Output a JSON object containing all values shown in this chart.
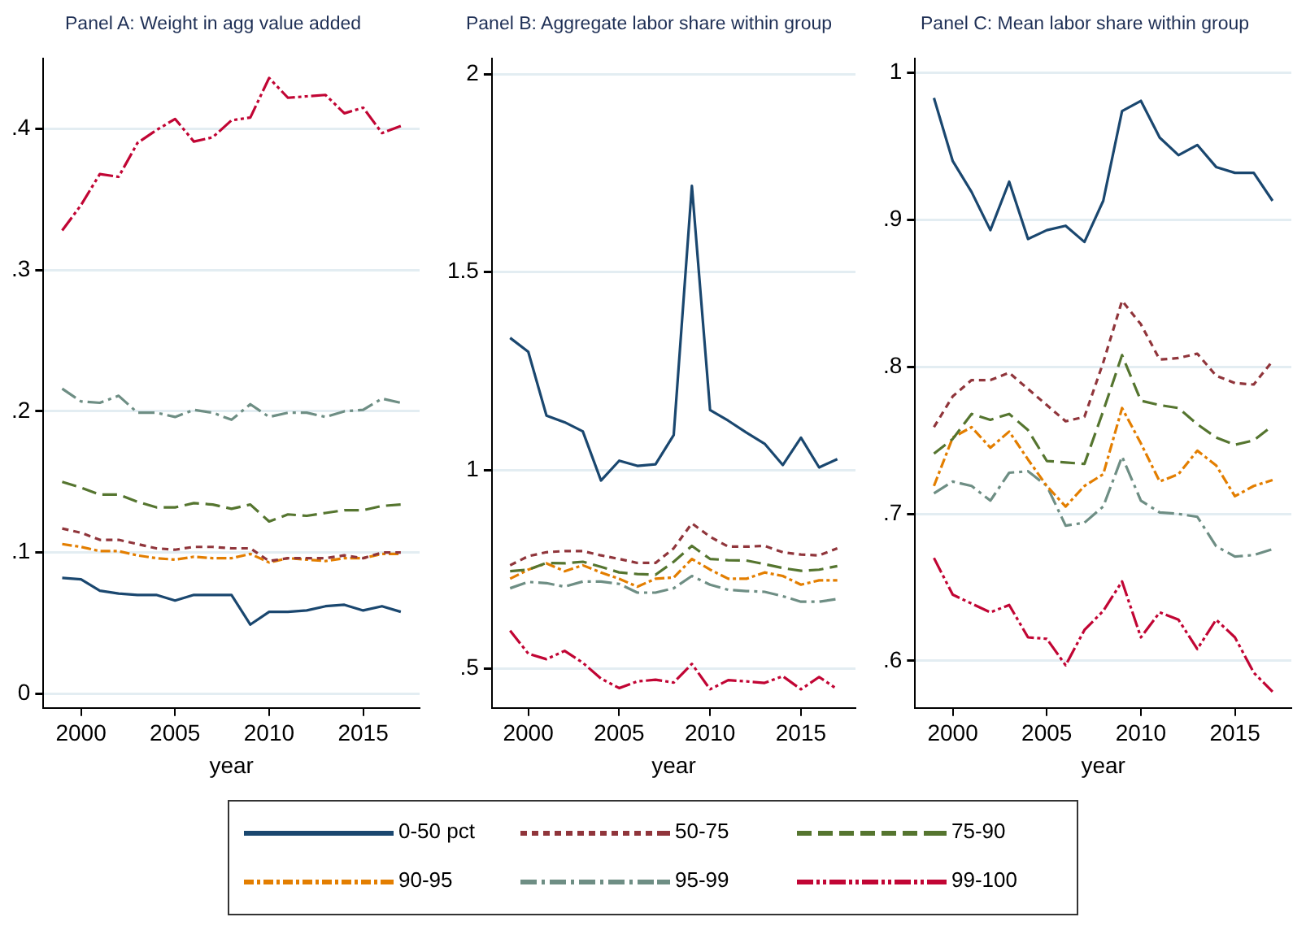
{
  "chart_data": [
    {
      "type": "line",
      "title": "Panel A: Weight in agg value added",
      "xlabel": "year",
      "x": [
        1999,
        2000,
        2001,
        2002,
        2003,
        2004,
        2005,
        2006,
        2007,
        2008,
        2009,
        2010,
        2011,
        2012,
        2013,
        2014,
        2015,
        2016,
        2017
      ],
      "xlim": [
        1998,
        2018
      ],
      "xticks": [
        2000,
        2005,
        2010,
        2015
      ],
      "ylim": [
        -0.01,
        0.45
      ],
      "yticks": [
        0,
        {
          "value": 0.1,
          "label": ".1"
        },
        {
          "value": 0.2,
          "label": ".2"
        },
        {
          "value": 0.3,
          "label": ".3"
        },
        {
          "value": 0.4,
          "label": ".4"
        }
      ],
      "grid": "y",
      "legend": "bottom",
      "marker": "none",
      "series": [
        {
          "name": "0-50 pct",
          "color": "#1a476f",
          "line_style": "solid",
          "values": [
            0.082,
            0.081,
            0.073,
            0.071,
            0.07,
            0.07,
            0.066,
            0.07,
            0.07,
            0.07,
            0.049,
            0.058,
            0.058,
            0.059,
            0.062,
            0.063,
            0.059,
            0.062,
            0.058
          ]
        },
        {
          "name": "50-75",
          "color": "#90353b",
          "line_style": "dashed",
          "values": [
            0.117,
            0.114,
            0.109,
            0.109,
            0.106,
            0.103,
            0.102,
            0.104,
            0.104,
            0.103,
            0.103,
            0.094,
            0.096,
            0.096,
            0.096,
            0.098,
            0.096,
            0.1,
            0.1
          ]
        },
        {
          "name": "75-90",
          "color": "#55752f",
          "line_style": "dashed",
          "values": [
            0.15,
            0.146,
            0.141,
            0.141,
            0.136,
            0.132,
            0.132,
            0.135,
            0.134,
            0.131,
            0.134,
            0.122,
            0.127,
            0.126,
            0.128,
            0.13,
            0.13,
            0.133,
            0.134
          ]
        },
        {
          "name": "90-95",
          "color": "#e37e00",
          "line_style": "dashed",
          "values": [
            0.106,
            0.104,
            0.101,
            0.101,
            0.098,
            0.096,
            0.095,
            0.097,
            0.096,
            0.096,
            0.099,
            0.093,
            0.096,
            0.095,
            0.094,
            0.096,
            0.096,
            0.099,
            0.099
          ]
        },
        {
          "name": "95-99",
          "color": "#6e8e84",
          "line_style": "dashed",
          "values": [
            0.216,
            0.207,
            0.206,
            0.211,
            0.199,
            0.199,
            0.196,
            0.201,
            0.199,
            0.194,
            0.205,
            0.196,
            0.199,
            0.199,
            0.196,
            0.2,
            0.201,
            0.209,
            0.206
          ]
        },
        {
          "name": "99-100",
          "color": "#c10534",
          "line_style": "dashed",
          "values": [
            0.328,
            0.346,
            0.368,
            0.366,
            0.39,
            0.399,
            0.407,
            0.391,
            0.394,
            0.406,
            0.408,
            0.436,
            0.422,
            0.423,
            0.424,
            0.411,
            0.415,
            0.397,
            0.402
          ]
        }
      ]
    },
    {
      "type": "line",
      "title": "Panel B: Aggregate labor share within group",
      "xlabel": "year",
      "x": [
        1999,
        2000,
        2001,
        2002,
        2003,
        2004,
        2005,
        2006,
        2007,
        2008,
        2009,
        2010,
        2011,
        2012,
        2013,
        2014,
        2015,
        2016,
        2017
      ],
      "xlim": [
        1998,
        2018
      ],
      "xticks": [
        2000,
        2005,
        2010,
        2015
      ],
      "ylim": [
        0.4,
        2.04
      ],
      "yticks": [
        {
          "value": 0.5,
          "label": ".5"
        },
        1,
        1.5,
        2
      ],
      "grid": "y",
      "marker": "none",
      "series": [
        {
          "color": "#1a476f",
          "line_style": "solid",
          "values": [
            1.334,
            1.299,
            1.138,
            1.121,
            1.098,
            0.974,
            1.024,
            1.011,
            1.015,
            1.089,
            1.718,
            1.152,
            1.125,
            1.095,
            1.067,
            1.013,
            1.082,
            1.007,
            1.028
          ]
        },
        {
          "color": "#90353b",
          "line_style": "dashed",
          "values": [
            0.76,
            0.783,
            0.793,
            0.796,
            0.796,
            0.785,
            0.776,
            0.766,
            0.766,
            0.803,
            0.866,
            0.832,
            0.807,
            0.807,
            0.809,
            0.793,
            0.787,
            0.785,
            0.803
          ]
        },
        {
          "color": "#55752f",
          "line_style": "dashed",
          "values": [
            0.745,
            0.749,
            0.766,
            0.765,
            0.769,
            0.756,
            0.742,
            0.738,
            0.736,
            0.769,
            0.809,
            0.776,
            0.773,
            0.772,
            0.763,
            0.753,
            0.746,
            0.749,
            0.758
          ]
        },
        {
          "color": "#e37e00",
          "line_style": "dashed",
          "values": [
            0.726,
            0.749,
            0.765,
            0.745,
            0.76,
            0.742,
            0.726,
            0.706,
            0.726,
            0.729,
            0.776,
            0.749,
            0.726,
            0.726,
            0.742,
            0.733,
            0.711,
            0.722,
            0.722
          ]
        },
        {
          "color": "#6e8e84",
          "line_style": "dashed",
          "values": [
            0.702,
            0.718,
            0.715,
            0.706,
            0.719,
            0.719,
            0.713,
            0.691,
            0.691,
            0.702,
            0.733,
            0.711,
            0.698,
            0.695,
            0.693,
            0.682,
            0.668,
            0.668,
            0.675
          ]
        },
        {
          "color": "#c10534",
          "line_style": "dashed",
          "values": [
            0.595,
            0.537,
            0.523,
            0.544,
            0.514,
            0.474,
            0.45,
            0.467,
            0.471,
            0.464,
            0.511,
            0.447,
            0.47,
            0.467,
            0.463,
            0.48,
            0.447,
            0.478,
            0.447
          ]
        }
      ]
    },
    {
      "type": "line",
      "title": "Panel C: Mean labor share within group",
      "xlabel": "year",
      "x": [
        1999,
        2000,
        2001,
        2002,
        2003,
        2004,
        2005,
        2006,
        2007,
        2008,
        2009,
        2010,
        2011,
        2012,
        2013,
        2014,
        2015,
        2016,
        2017
      ],
      "xlim": [
        1998,
        2018
      ],
      "xticks": [
        2000,
        2005,
        2010,
        2015
      ],
      "ylim": [
        0.568,
        1.01
      ],
      "yticks": [
        {
          "value": 0.6,
          "label": ".6"
        },
        {
          "value": 0.7,
          "label": ".7"
        },
        {
          "value": 0.8,
          "label": ".8"
        },
        {
          "value": 0.9,
          "label": ".9"
        },
        1
      ],
      "grid": "y",
      "marker": "none",
      "series": [
        {
          "color": "#1a476f",
          "line_style": "solid",
          "values": [
            0.983,
            0.94,
            0.919,
            0.893,
            0.926,
            0.887,
            0.893,
            0.896,
            0.885,
            0.913,
            0.974,
            0.981,
            0.956,
            0.944,
            0.951,
            0.936,
            0.932,
            0.932,
            0.913
          ]
        },
        {
          "color": "#90353b",
          "line_style": "dashed",
          "values": [
            0.759,
            0.78,
            0.791,
            0.791,
            0.796,
            0.785,
            0.774,
            0.763,
            0.766,
            0.803,
            0.845,
            0.829,
            0.805,
            0.806,
            0.809,
            0.794,
            0.789,
            0.788,
            0.804
          ]
        },
        {
          "color": "#55752f",
          "line_style": "dashed",
          "values": [
            0.741,
            0.751,
            0.768,
            0.764,
            0.768,
            0.757,
            0.736,
            0.735,
            0.734,
            0.77,
            0.808,
            0.777,
            0.774,
            0.772,
            0.761,
            0.752,
            0.747,
            0.75,
            0.76
          ]
        },
        {
          "color": "#e37e00",
          "line_style": "dashed",
          "values": [
            0.719,
            0.752,
            0.759,
            0.745,
            0.756,
            0.737,
            0.719,
            0.705,
            0.719,
            0.727,
            0.772,
            0.748,
            0.722,
            0.727,
            0.743,
            0.733,
            0.712,
            0.719,
            0.723
          ]
        },
        {
          "color": "#6e8e84",
          "line_style": "dashed",
          "values": [
            0.714,
            0.722,
            0.719,
            0.709,
            0.728,
            0.729,
            0.719,
            0.692,
            0.694,
            0.705,
            0.739,
            0.709,
            0.701,
            0.7,
            0.698,
            0.678,
            0.671,
            0.672,
            0.676
          ]
        },
        {
          "color": "#c10534",
          "line_style": "dashed",
          "values": [
            0.67,
            0.645,
            0.639,
            0.633,
            0.638,
            0.616,
            0.615,
            0.597,
            0.621,
            0.634,
            0.654,
            0.616,
            0.633,
            0.628,
            0.608,
            0.628,
            0.616,
            0.592,
            0.579
          ]
        }
      ]
    }
  ]
}
